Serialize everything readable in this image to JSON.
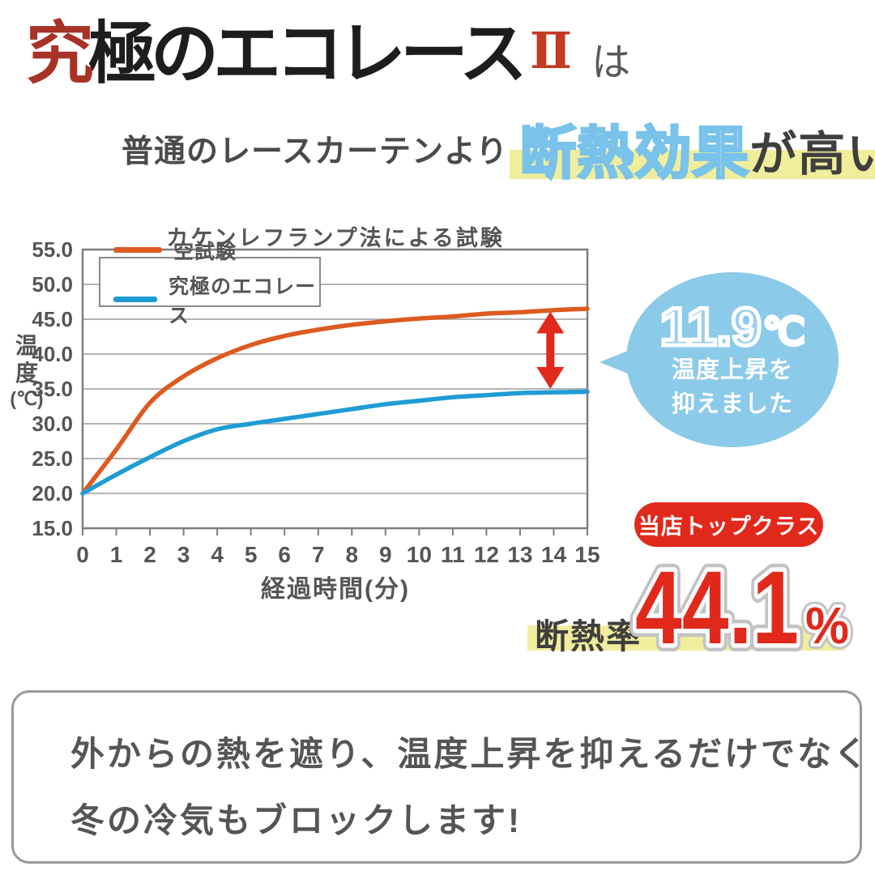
{
  "colors": {
    "orange": "#dd5a20",
    "blue": "#1f9cd4",
    "red": "#e1291b",
    "yellow": "#f0ee9c",
    "bubble_blue": "#8ccae9",
    "grid_gray": "#9b9b9b",
    "axis_gray": "#7d7d7d",
    "text_gray": "#555555"
  },
  "logo": {
    "part1": "究",
    "part2": "極のエコレース",
    "numeral": "Ⅱ",
    "particle": "は"
  },
  "headline": {
    "prefix": "普通のレースカーテンより",
    "highlight": "断熱効果",
    "suffix": "が高い!"
  },
  "chart_data": {
    "type": "line",
    "title": "カケンレフランプ法による試験",
    "xlabel": "経過時間(分)",
    "ylabel": "温度(℃)",
    "ylabel_lines": [
      "温",
      "度",
      "(℃)"
    ],
    "x": [
      0,
      1,
      2,
      3,
      4,
      5,
      6,
      7,
      8,
      9,
      10,
      11,
      12,
      13,
      14,
      15
    ],
    "series": [
      {
        "name": "空試験",
        "color": "#dd5a20",
        "values": [
          20.0,
          26.3,
          33.0,
          36.8,
          39.4,
          41.3,
          42.6,
          43.5,
          44.2,
          44.7,
          45.1,
          45.4,
          45.8,
          46.0,
          46.3,
          46.5
        ]
      },
      {
        "name": "究極のエコレース",
        "color": "#1f9cd4",
        "values": [
          20.0,
          22.7,
          25.2,
          27.5,
          29.2,
          30.0,
          30.7,
          31.4,
          32.1,
          32.8,
          33.3,
          33.8,
          34.1,
          34.4,
          34.5,
          34.6
        ]
      }
    ],
    "ylim": [
      15,
      55
    ],
    "ytick_step": 5,
    "xlim": [
      0,
      15
    ],
    "grid": true,
    "legend_position": "top-left",
    "annotation_arrow": {
      "x": 13.9,
      "from": 46.1,
      "to": 35.0
    }
  },
  "bubble": {
    "value": "11.9",
    "unit": "℃",
    "line1": "温度上昇を",
    "line2": "抑えました"
  },
  "badge": {
    "label": "当店トップクラス"
  },
  "rate": {
    "label": "断熱率",
    "value": "44.1",
    "unit": "%"
  },
  "info_box": {
    "line1": "外からの熱を遮り、温度上昇を抑えるだけでなく",
    "line2": "冬の冷気もブロックします!"
  }
}
